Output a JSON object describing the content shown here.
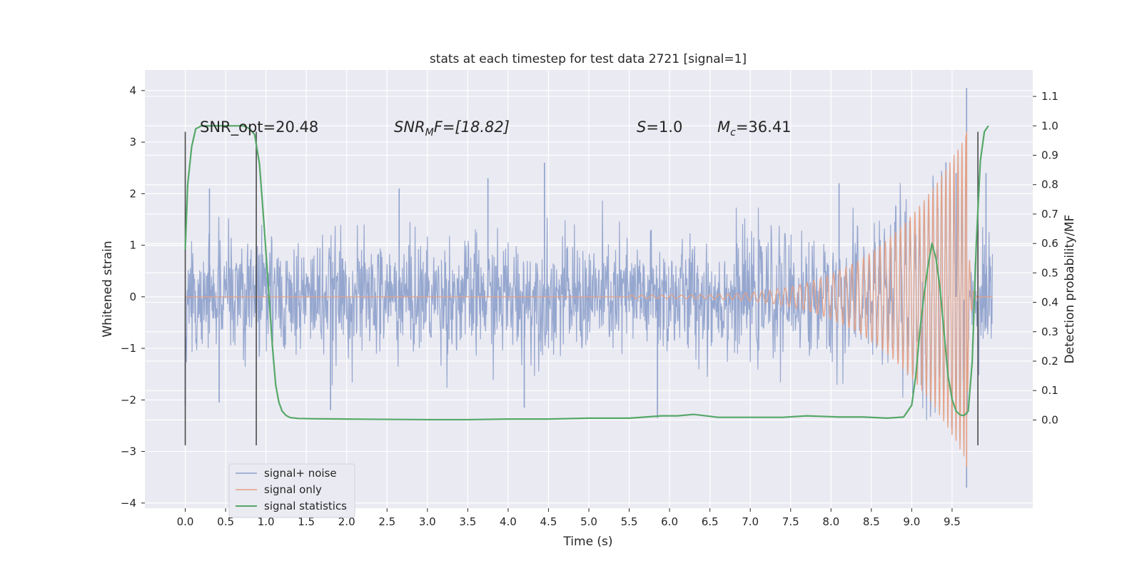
{
  "chart_data": {
    "type": "line",
    "title": "stats at each timestep for test data 2721 [signal=1]",
    "xlabel": "Time (s)",
    "ylabel": "Whitened strain",
    "y2label": "Detection probability/MF",
    "xlim": [
      -0.5,
      10.5
    ],
    "ylim": [
      -4.1,
      4.4
    ],
    "y2lim": [
      -0.3,
      1.19
    ],
    "x_ticks": [
      0.0,
      0.5,
      1.0,
      1.5,
      2.0,
      2.5,
      3.0,
      3.5,
      4.0,
      4.5,
      5.0,
      5.5,
      6.0,
      6.5,
      7.0,
      7.5,
      8.0,
      8.5,
      9.0,
      9.5
    ],
    "x_tick_labels": [
      "0.0",
      "0.5",
      "1.0",
      "1.5",
      "2.0",
      "2.5",
      "3.0",
      "3.5",
      "4.0",
      "4.5",
      "5.0",
      "5.5",
      "6.0",
      "6.5",
      "7.0",
      "7.5",
      "8.0",
      "8.5",
      "9.0",
      "9.5"
    ],
    "y_ticks": [
      4,
      3,
      2,
      1,
      0,
      -1,
      -2,
      -3,
      -4
    ],
    "y_tick_labels": [
      "4",
      "3",
      "2",
      "1",
      "0",
      "−1",
      "−2",
      "−3",
      "−4"
    ],
    "y2_ticks": [
      1.1,
      1.0,
      0.9,
      0.8,
      0.7,
      0.6,
      0.5,
      0.4,
      0.3,
      0.2,
      0.1,
      0.0
    ],
    "y2_tick_labels": [
      "1.1",
      "1.0",
      "0.9",
      "0.8",
      "0.7",
      "0.6",
      "0.5",
      "0.4",
      "0.3",
      "0.2",
      "0.1",
      "0.0"
    ],
    "grid": true,
    "legend_position": "lower-left",
    "annotations": {
      "snr_opt": "SNR_opt=20.48",
      "snr_mf_sym": "SNR",
      "snr_mf_sub": "M",
      "snr_mf_rest": "F=[18.82]",
      "s_sym": "S",
      "s_rest": "=1.0",
      "mc_sym": "M",
      "mc_sub": "c",
      "mc_rest": "=36.41"
    },
    "window_markers": {
      "x": [
        0.0,
        0.88,
        9.82
      ],
      "y_range": [
        -2.88,
        3.2
      ]
    },
    "series": [
      {
        "name": "signal+ noise",
        "color": "#8da0cb",
        "x_range": [
          0.0,
          10.0
        ],
        "typical_band": [
          -1.3,
          1.3
        ],
        "peaks": [
          {
            "x": 0.0,
            "y": -2.1
          },
          {
            "x": 0.3,
            "y": 2.1
          },
          {
            "x": 0.42,
            "y": -2.05
          },
          {
            "x": 1.8,
            "y": -2.2
          },
          {
            "x": 2.65,
            "y": 2.1
          },
          {
            "x": 3.75,
            "y": 2.3
          },
          {
            "x": 4.2,
            "y": -2.15
          },
          {
            "x": 4.45,
            "y": 2.6
          },
          {
            "x": 5.85,
            "y": -2.35
          },
          {
            "x": 8.1,
            "y": 2.2
          },
          {
            "x": 9.55,
            "y": 2.4
          },
          {
            "x": 9.68,
            "y": 4.05
          },
          {
            "x": 9.68,
            "y": -3.7
          },
          {
            "x": 9.92,
            "y": 2.4
          }
        ]
      },
      {
        "name": "signal only",
        "color": "#e5a084",
        "chirp": {
          "start_x": 5.5,
          "merger_x": 9.68,
          "end_x": 10.0,
          "peak_max": 3.2,
          "peak_min": -3.3
        }
      },
      {
        "name": "signal statistics",
        "color": "#55a868",
        "axis": "right",
        "x": [
          0.0,
          0.03,
          0.08,
          0.13,
          0.2,
          0.3,
          0.45,
          0.6,
          0.72,
          0.8,
          0.86,
          0.92,
          0.98,
          1.03,
          1.08,
          1.12,
          1.16,
          1.2,
          1.25,
          1.3,
          1.4,
          1.6,
          2.0,
          2.5,
          3.0,
          3.5,
          4.0,
          4.5,
          5.0,
          5.2,
          5.5,
          5.9,
          6.1,
          6.3,
          6.6,
          7.0,
          7.4,
          7.7,
          8.1,
          8.4,
          8.7,
          8.9,
          9.0,
          9.05,
          9.1,
          9.15,
          9.2,
          9.25,
          9.3,
          9.35,
          9.4,
          9.45,
          9.5,
          9.55,
          9.6,
          9.65,
          9.7,
          9.75,
          9.8,
          9.85,
          9.9,
          9.95
        ],
        "y": [
          0.58,
          0.8,
          0.93,
          0.99,
          1.0,
          1.0,
          1.0,
          1.0,
          1.0,
          0.99,
          0.97,
          0.87,
          0.65,
          0.45,
          0.25,
          0.12,
          0.06,
          0.03,
          0.015,
          0.008,
          0.005,
          0.004,
          0.003,
          0.002,
          0.001,
          0.001,
          0.003,
          0.003,
          0.006,
          0.006,
          0.006,
          0.014,
          0.014,
          0.019,
          0.009,
          0.009,
          0.009,
          0.014,
          0.01,
          0.01,
          0.006,
          0.01,
          0.05,
          0.15,
          0.3,
          0.42,
          0.52,
          0.6,
          0.55,
          0.45,
          0.3,
          0.15,
          0.07,
          0.03,
          0.017,
          0.015,
          0.03,
          0.2,
          0.6,
          0.88,
          0.98,
          1.0
        ]
      }
    ]
  }
}
